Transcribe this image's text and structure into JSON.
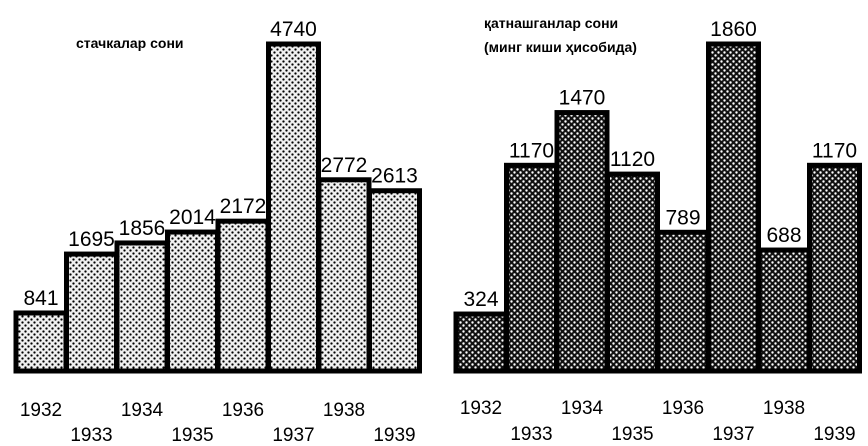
{
  "chart_data": [
    {
      "type": "bar",
      "title": "стачкалар сони",
      "categories": [
        "1932",
        "1933",
        "1934",
        "1935",
        "1936",
        "1937",
        "1938",
        "1939"
      ],
      "values": [
        841,
        1695,
        1856,
        2014,
        2172,
        4740,
        2772,
        2613
      ],
      "xlabel": "",
      "ylabel": "",
      "ylim": [
        0,
        4740
      ],
      "grid": false,
      "legend": "none",
      "fill_pattern": "light-dotted",
      "colors": {
        "bar_fill": "#d8d8d8",
        "dot": "#000000",
        "outline": "#000000"
      }
    },
    {
      "type": "bar",
      "title": "қатнашганлар сони",
      "subtitle": "(минг киши ҳисобида)",
      "categories": [
        "1932",
        "1933",
        "1934",
        "1935",
        "1936",
        "1937",
        "1938",
        "1939"
      ],
      "values": [
        324,
        1170,
        1470,
        1120,
        789,
        1860,
        688,
        1170
      ],
      "xlabel": "",
      "ylabel": "",
      "ylim": [
        0,
        1860
      ],
      "grid": false,
      "legend": "none",
      "fill_pattern": "dark-dotted",
      "colors": {
        "bar_fill": "#1a1a1a",
        "dot": "#ffffff",
        "outline": "#000000"
      }
    }
  ]
}
